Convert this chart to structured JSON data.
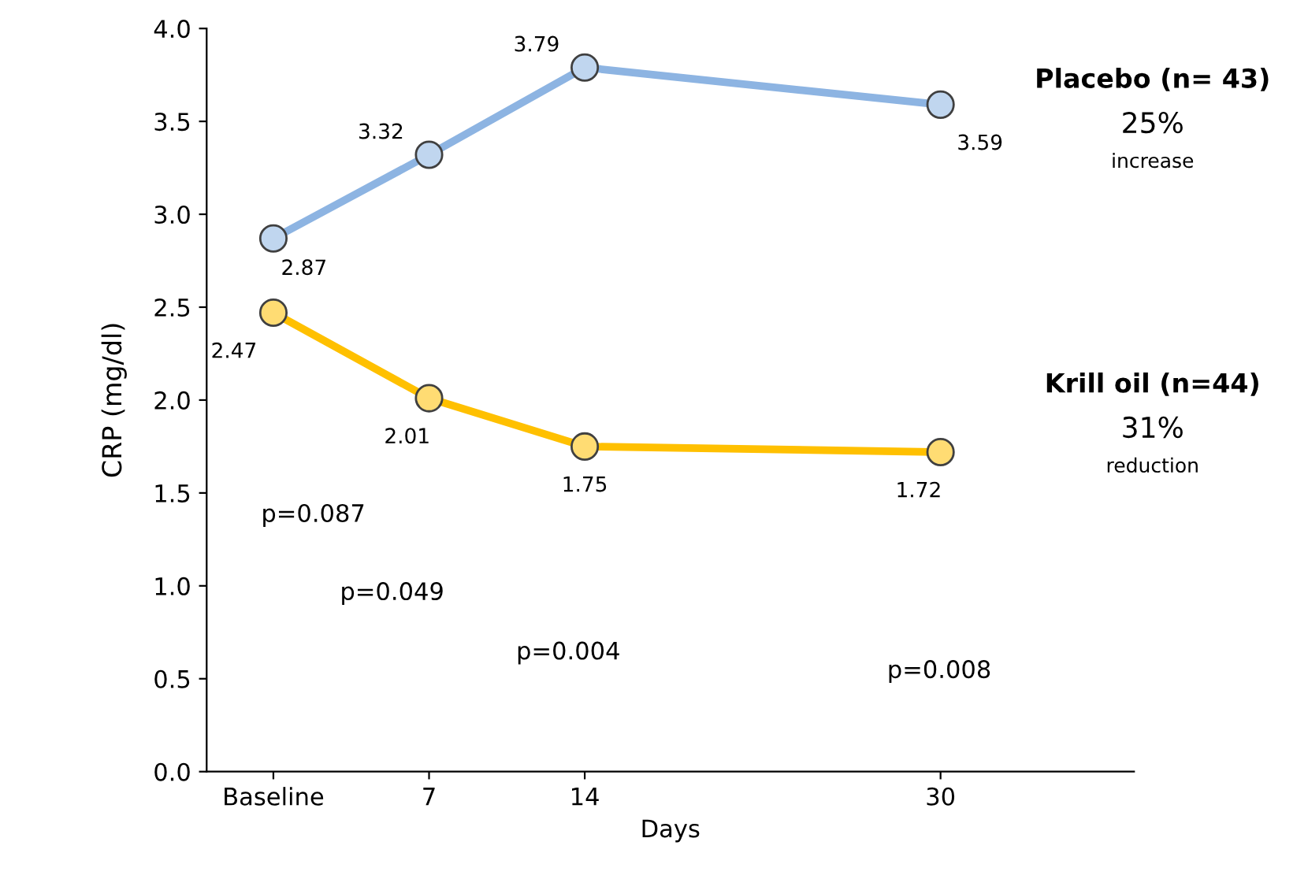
{
  "chart_data": {
    "type": "line",
    "xlabel": "Days",
    "ylabel": "CRP (mg/dl)",
    "x": [
      0,
      7,
      14,
      30
    ],
    "xlim": [
      -3,
      38.7
    ],
    "xticks": [
      {
        "value": 0,
        "label": "Baseline"
      },
      7,
      14,
      30
    ],
    "ylim": [
      0,
      4.0
    ],
    "yticks": [
      {
        "value": 0,
        "label": "0.0"
      },
      {
        "value": 0.5,
        "label": "0.5"
      },
      {
        "value": 1,
        "label": "1.0"
      },
      {
        "value": 1.5,
        "label": "1.5"
      },
      {
        "value": 2,
        "label": "2.0"
      },
      {
        "value": 2.5,
        "label": "2.5"
      },
      {
        "value": 3,
        "label": "3.0"
      },
      {
        "value": 3.5,
        "label": "3.5"
      },
      {
        "value": 4,
        "label": "4.0"
      }
    ],
    "series": [
      {
        "name": "Placebo (n= 43)",
        "color": "#8db4e2",
        "values": [
          2.87,
          3.32,
          3.79,
          3.59
        ]
      },
      {
        "name": "Krill oil (n=44)",
        "color": "#ffc000",
        "values": [
          2.47,
          2.01,
          1.75,
          1.72
        ]
      }
    ],
    "marker": "circle",
    "line_style": "solid",
    "grid": false,
    "data_labels": true,
    "annotations": [
      "25%",
      "increase",
      "31%",
      "reduction",
      "p=0.087",
      "p=0.049",
      "p=0.004",
      "p=0.008"
    ]
  }
}
